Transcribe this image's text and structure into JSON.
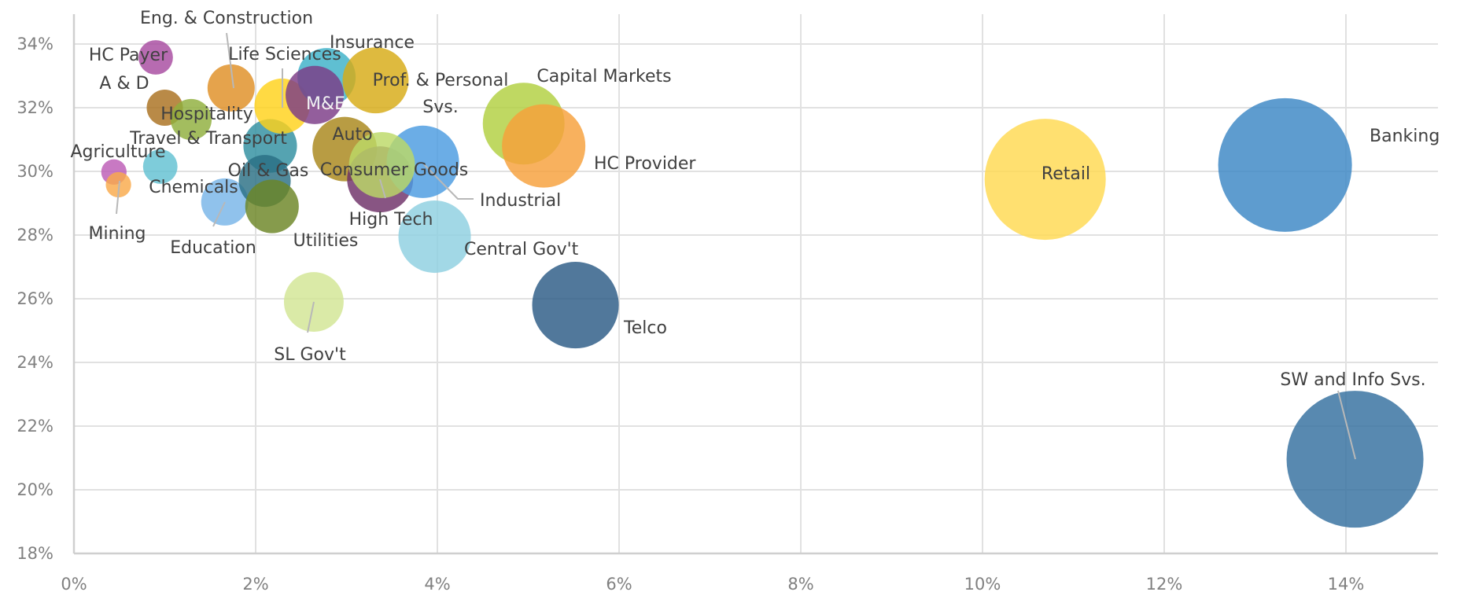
{
  "chart_data": {
    "type": "scatter",
    "subtype": "bubble",
    "title": "",
    "xlabel": "",
    "ylabel": "",
    "xlim": [
      0,
      15
    ],
    "ylim": [
      18,
      35
    ],
    "x_ticks": [
      "0%",
      "2%",
      "4%",
      "6%",
      "8%",
      "10%",
      "12%",
      "14%"
    ],
    "x_tick_values": [
      0,
      2,
      4,
      6,
      8,
      10,
      12,
      14
    ],
    "y_ticks": [
      "18%",
      "20%",
      "22%",
      "24%",
      "26%",
      "28%",
      "30%",
      "32%",
      "34%"
    ],
    "y_tick_values": [
      18,
      20,
      22,
      24,
      26,
      28,
      30,
      32,
      34
    ],
    "grid": true,
    "legend": "none",
    "size_note": "relative bubble size (area units)",
    "points": [
      {
        "label": "HC Payer",
        "x": 0.9,
        "y": 33.58,
        "size": 4.8,
        "color": "#a74aa0"
      },
      {
        "label": "A & D",
        "x": 1.0,
        "y": 32.0,
        "size": 5.3,
        "color": "#a9701f"
      },
      {
        "label": "Hospitality",
        "x": 1.29,
        "y": 31.63,
        "size": 6.8,
        "color": "#8fae3c"
      },
      {
        "label": "Eng. & Construction",
        "x": 1.73,
        "y": 32.62,
        "size": 9.0,
        "color": "#df8f24"
      },
      {
        "label": "Agriculture",
        "x": 0.44,
        "y": 29.98,
        "size": 2.6,
        "color": "#bc5cb6"
      },
      {
        "label": "Mining",
        "x": 0.49,
        "y": 29.58,
        "size": 2.6,
        "color": "#f9a94a"
      },
      {
        "label": "Chemicals",
        "x": 0.95,
        "y": 30.15,
        "size": 4.8,
        "color": "#62c1d2"
      },
      {
        "label": "Education",
        "x": 1.66,
        "y": 29.04,
        "size": 9.0,
        "color": "#78b4e8"
      },
      {
        "label": "Travel & Transport",
        "x": 2.16,
        "y": 30.8,
        "size": 11.6,
        "color": "#2f8fa0"
      },
      {
        "label": "Oil & Gas",
        "x": 2.1,
        "y": 29.7,
        "size": 10.9,
        "color": "#2a6f84"
      },
      {
        "label": "Utilities",
        "x": 2.18,
        "y": 28.9,
        "size": 11.6,
        "color": "#6b8524"
      },
      {
        "label": "Life Sciences",
        "x": 2.29,
        "y": 32.05,
        "size": 12.3,
        "color": "#ffd21a"
      },
      {
        "label": "Insurance",
        "x": 2.78,
        "y": 32.96,
        "size": 13.7,
        "color": "#3cb1c8"
      },
      {
        "label": "M&E",
        "x": 2.65,
        "y": 32.4,
        "size": 13.7,
        "color": "#7b3a86"
      },
      {
        "label": "Prof. & Personal Svs.",
        "x": 3.32,
        "y": 32.86,
        "size": 17.6,
        "color": "#d7ab15"
      },
      {
        "label": "Auto",
        "x": 2.98,
        "y": 30.7,
        "size": 16.8,
        "color": "#a8861a"
      },
      {
        "label": "High Tech",
        "x": 3.37,
        "y": 29.75,
        "size": 17.6,
        "color": "#6e2f68"
      },
      {
        "label": "Industrial",
        "x": 3.84,
        "y": 30.3,
        "size": 21.2,
        "color": "#4b9be0"
      },
      {
        "label": "Consumer Goods",
        "x": 3.39,
        "y": 30.2,
        "size": 17.6,
        "color": "#bcd966"
      },
      {
        "label": "Central Gov't",
        "x": 3.97,
        "y": 27.95,
        "size": 21.2,
        "color": "#8dd0e0"
      },
      {
        "label": "SL Gov't",
        "x": 2.64,
        "y": 25.9,
        "size": 14.4,
        "color": "#d2e594"
      },
      {
        "label": "Telco",
        "x": 5.52,
        "y": 25.8,
        "size": 30.3,
        "color": "#2b5a85"
      },
      {
        "label": "Capital Markets",
        "x": 4.95,
        "y": 31.5,
        "size": 27.0,
        "color": "#b1d03f"
      },
      {
        "label": "HC Provider",
        "x": 5.17,
        "y": 30.8,
        "size": 28.1,
        "color": "#f7a03a"
      },
      {
        "label": "Retail",
        "x": 10.69,
        "y": 29.75,
        "size": 59.3,
        "color": "#ffd950"
      },
      {
        "label": "Banking",
        "x": 13.33,
        "y": 30.2,
        "size": 72.3,
        "color": "#3b86c4"
      },
      {
        "label": "SW and Info Svs.",
        "x": 14.1,
        "y": 20.96,
        "size": 75.7,
        "color": "#336f9f"
      }
    ]
  }
}
